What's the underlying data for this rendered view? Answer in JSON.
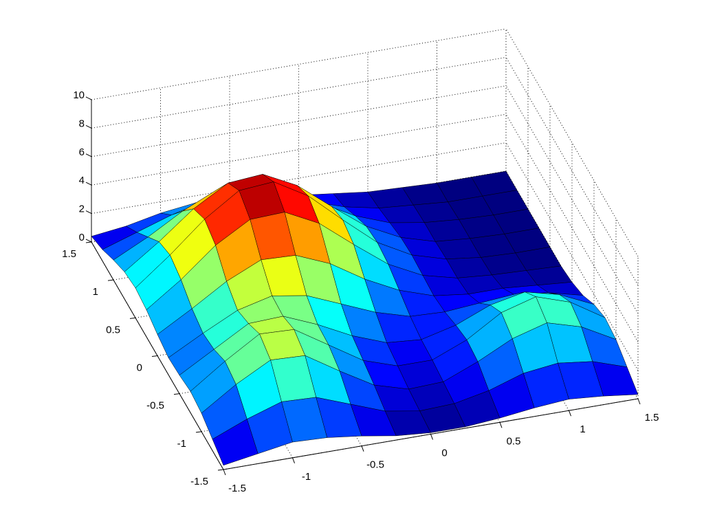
{
  "chart_data": {
    "type": "surface",
    "x": [
      -1.5,
      -1.25,
      -1,
      -0.75,
      -0.5,
      -0.25,
      0,
      0.25,
      0.5,
      0.75,
      1,
      1.25,
      1.5
    ],
    "y": [
      -1.5,
      -1.25,
      -1,
      -0.75,
      -0.5,
      -0.25,
      0,
      0.25,
      0.5,
      0.75,
      1,
      1.25,
      1.5
    ],
    "z": [
      [
        0.3,
        0.7,
        1.1,
        1.0,
        0.7,
        0.3,
        0.1,
        0.1,
        0.3,
        0.6,
        0.8,
        0.6,
        0.3
      ],
      [
        0.8,
        1.8,
        2.6,
        2.5,
        1.6,
        0.7,
        0.3,
        0.4,
        0.9,
        1.7,
        2.0,
        1.7,
        0.9
      ],
      [
        1.3,
        2.9,
        4.2,
        4.1,
        2.6,
        1.2,
        0.5,
        0.6,
        1.6,
        2.8,
        3.5,
        2.8,
        1.5
      ],
      [
        1.5,
        3.2,
        4.7,
        4.6,
        3.1,
        1.6,
        0.8,
        0.8,
        1.8,
        3.3,
        4.0,
        3.2,
        1.7
      ],
      [
        1.3,
        2.7,
        4.1,
        4.2,
        3.2,
        2.0,
        1.1,
        0.9,
        1.5,
        2.5,
        3.0,
        2.4,
        1.3
      ],
      [
        1.2,
        2.5,
        3.7,
        4.3,
        3.9,
        2.9,
        1.9,
        1.2,
        1.1,
        1.3,
        1.5,
        1.2,
        0.6
      ],
      [
        1.5,
        2.9,
        4.4,
        5.5,
        5.4,
        4.4,
        2.9,
        1.7,
        0.9,
        0.6,
        0.6,
        0.4,
        0.2
      ],
      [
        1.9,
        3.6,
        5.6,
        7.0,
        7.1,
        5.9,
        4.0,
        2.2,
        1.0,
        0.4,
        0.2,
        0.1,
        0.0
      ],
      [
        2.1,
        4.0,
        6.1,
        7.7,
        7.9,
        6.5,
        4.4,
        2.4,
        1.1,
        0.4,
        0.1,
        0.0,
        0.0
      ],
      [
        1.9,
        3.6,
        5.5,
        6.9,
        7.1,
        5.9,
        4.0,
        2.2,
        1.0,
        0.3,
        0.1,
        0.0,
        0.0
      ],
      [
        1.4,
        2.6,
        4.0,
        5.1,
        5.2,
        4.3,
        2.9,
        1.6,
        0.7,
        0.3,
        0.1,
        0.0,
        0.0
      ],
      [
        0.8,
        1.6,
        2.4,
        3.0,
        3.1,
        2.6,
        1.7,
        0.9,
        0.4,
        0.2,
        0.0,
        0.0,
        0.0
      ],
      [
        0.4,
        0.7,
        1.2,
        1.5,
        1.5,
        1.2,
        0.8,
        0.5,
        0.2,
        0.1,
        0.0,
        0.0,
        0.0
      ]
    ],
    "xlim": [
      -1.5,
      1.5
    ],
    "ylim": [
      -1.5,
      1.5
    ],
    "zlim": [
      0,
      10
    ],
    "xticks": [
      -1.5,
      -1,
      -0.5,
      0,
      0.5,
      1,
      1.5
    ],
    "yticks": [
      -1.5,
      -1,
      -0.5,
      0,
      0.5,
      1,
      1.5
    ],
    "zticks": [
      0,
      2,
      4,
      6,
      8,
      10
    ],
    "colormap": "jet",
    "edgecolor": "#000000",
    "grid": true
  }
}
